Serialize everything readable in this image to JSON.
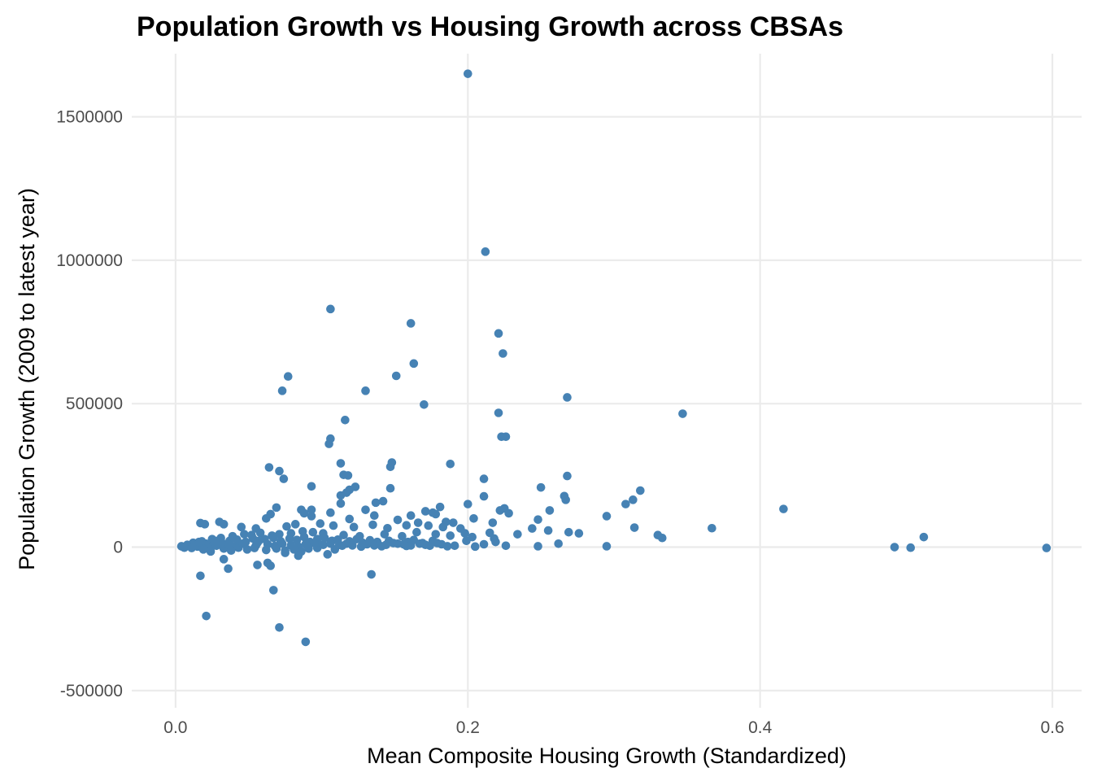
{
  "chart_data": {
    "type": "scatter",
    "title": "Population Growth vs Housing Growth across CBSAs",
    "xlabel": "Mean Composite Housing Growth (Standardized)",
    "ylabel": "Population Growth (2009 to latest year)",
    "xlim": [
      -0.03,
      0.62
    ],
    "ylim": [
      -560000,
      1720000
    ],
    "xticks": [
      0.0,
      0.2,
      0.4,
      0.6
    ],
    "xtick_labels": [
      "0.0",
      "0.2",
      "0.4",
      "0.6"
    ],
    "yticks": [
      -500000,
      0,
      500000,
      1000000,
      1500000
    ],
    "ytick_labels": [
      "-500000",
      "0",
      "500000",
      "1000000",
      "1500000"
    ],
    "grid": true,
    "legend": "none",
    "point_color": "#4682B4",
    "points": [
      [
        0.2,
        1650000
      ],
      [
        0.212,
        1030000
      ],
      [
        0.106,
        830000
      ],
      [
        0.161,
        780000
      ],
      [
        0.221,
        745000
      ],
      [
        0.224,
        675000
      ],
      [
        0.163,
        640000
      ],
      [
        0.077,
        595000
      ],
      [
        0.151,
        597000
      ],
      [
        0.073,
        545000
      ],
      [
        0.13,
        545000
      ],
      [
        0.268,
        522000
      ],
      [
        0.17,
        497000
      ],
      [
        0.347,
        465000
      ],
      [
        0.221,
        468000
      ],
      [
        0.116,
        443000
      ],
      [
        0.223,
        385000
      ],
      [
        0.226,
        385000
      ],
      [
        0.106,
        378000
      ],
      [
        0.105,
        360000
      ],
      [
        0.113,
        292000
      ],
      [
        0.148,
        295000
      ],
      [
        0.188,
        290000
      ],
      [
        0.147,
        280000
      ],
      [
        0.064,
        278000
      ],
      [
        0.071,
        265000
      ],
      [
        0.115,
        252000
      ],
      [
        0.268,
        248000
      ],
      [
        0.118,
        250000
      ],
      [
        0.074,
        238000
      ],
      [
        0.211,
        238000
      ],
      [
        0.093,
        212000
      ],
      [
        0.123,
        210000
      ],
      [
        0.25,
        208000
      ],
      [
        0.147,
        205000
      ],
      [
        0.119,
        200000
      ],
      [
        0.117,
        190000
      ],
      [
        0.318,
        197000
      ],
      [
        0.113,
        180000
      ],
      [
        0.211,
        177000
      ],
      [
        0.266,
        178000
      ],
      [
        0.313,
        165000
      ],
      [
        0.267,
        165000
      ],
      [
        0.142,
        160000
      ],
      [
        0.308,
        150000
      ],
      [
        0.137,
        155000
      ],
      [
        0.2,
        150000
      ],
      [
        0.113,
        152000
      ],
      [
        0.181,
        140000
      ],
      [
        0.093,
        130000
      ],
      [
        0.416,
        133000
      ],
      [
        0.225,
        135000
      ],
      [
        0.13,
        130000
      ],
      [
        0.069,
        138000
      ],
      [
        0.086,
        130000
      ],
      [
        0.088,
        118000
      ],
      [
        0.222,
        128000
      ],
      [
        0.106,
        120000
      ],
      [
        0.256,
        128000
      ],
      [
        0.171,
        125000
      ],
      [
        0.176,
        120000
      ],
      [
        0.065,
        115000
      ],
      [
        0.228,
        118000
      ],
      [
        0.178,
        115000
      ],
      [
        0.136,
        110000
      ],
      [
        0.093,
        108000
      ],
      [
        0.161,
        110000
      ],
      [
        0.295,
        108000
      ],
      [
        0.248,
        96000
      ],
      [
        0.217,
        85000
      ],
      [
        0.119,
        98000
      ],
      [
        0.204,
        100000
      ],
      [
        0.062,
        100000
      ],
      [
        0.152,
        95000
      ],
      [
        0.19,
        85000
      ],
      [
        0.185,
        88000
      ],
      [
        0.017,
        84000
      ],
      [
        0.02,
        80000
      ],
      [
        0.03,
        88000
      ],
      [
        0.033,
        80000
      ],
      [
        0.045,
        70000
      ],
      [
        0.055,
        65000
      ],
      [
        0.076,
        72000
      ],
      [
        0.082,
        80000
      ],
      [
        0.099,
        82000
      ],
      [
        0.108,
        75000
      ],
      [
        0.122,
        70000
      ],
      [
        0.135,
        78000
      ],
      [
        0.145,
        66000
      ],
      [
        0.158,
        76000
      ],
      [
        0.166,
        85000
      ],
      [
        0.173,
        75000
      ],
      [
        0.183,
        70000
      ],
      [
        0.195,
        65000
      ],
      [
        0.244,
        65000
      ],
      [
        0.269,
        52000
      ],
      [
        0.276,
        48000
      ],
      [
        0.314,
        68000
      ],
      [
        0.33,
        42000
      ],
      [
        0.333,
        32000
      ],
      [
        0.367,
        66000
      ],
      [
        0.255,
        58000
      ],
      [
        0.234,
        45000
      ],
      [
        0.215,
        50000
      ],
      [
        0.203,
        35000
      ],
      [
        0.218,
        30000
      ],
      [
        0.198,
        48000
      ],
      [
        0.188,
        40000
      ],
      [
        0.178,
        45000
      ],
      [
        0.165,
        52000
      ],
      [
        0.155,
        38000
      ],
      [
        0.143,
        45000
      ],
      [
        0.126,
        38000
      ],
      [
        0.115,
        42000
      ],
      [
        0.101,
        48000
      ],
      [
        0.094,
        52000
      ],
      [
        0.087,
        55000
      ],
      [
        0.079,
        48000
      ],
      [
        0.071,
        45000
      ],
      [
        0.066,
        40000
      ],
      [
        0.058,
        50000
      ],
      [
        0.052,
        42000
      ],
      [
        0.047,
        45000
      ],
      [
        0.039,
        38000
      ],
      [
        0.031,
        32000
      ],
      [
        0.025,
        28000
      ],
      [
        0.018,
        20000
      ],
      [
        0.012,
        15000
      ],
      [
        0.008,
        8000
      ],
      [
        0.004,
        3000
      ],
      [
        0.006,
        -2000
      ],
      [
        0.011,
        -3000
      ],
      [
        0.015,
        2000
      ],
      [
        0.021,
        12000
      ],
      [
        0.026,
        6000
      ],
      [
        0.032,
        14000
      ],
      [
        0.037,
        22000
      ],
      [
        0.042,
        26000
      ],
      [
        0.048,
        18000
      ],
      [
        0.053,
        30000
      ],
      [
        0.057,
        22000
      ],
      [
        0.061,
        28000
      ],
      [
        0.067,
        32000
      ],
      [
        0.072,
        20000
      ],
      [
        0.078,
        30000
      ],
      [
        0.083,
        25000
      ],
      [
        0.088,
        35000
      ],
      [
        0.092,
        18000
      ],
      [
        0.097,
        28000
      ],
      [
        0.102,
        32000
      ],
      [
        0.107,
        22000
      ],
      [
        0.111,
        26000
      ],
      [
        0.119,
        20000
      ],
      [
        0.124,
        28000
      ],
      [
        0.128,
        15000
      ],
      [
        0.133,
        24000
      ],
      [
        0.138,
        18000
      ],
      [
        0.146,
        22000
      ],
      [
        0.152,
        12000
      ],
      [
        0.159,
        18000
      ],
      [
        0.163,
        25000
      ],
      [
        0.169,
        14000
      ],
      [
        0.176,
        22000
      ],
      [
        0.182,
        10000
      ],
      [
        0.191,
        5000
      ],
      [
        0.199,
        22000
      ],
      [
        0.205,
        2000
      ],
      [
        0.211,
        10000
      ],
      [
        0.219,
        18000
      ],
      [
        0.174,
        5000
      ],
      [
        0.158,
        4000
      ],
      [
        0.141,
        3000
      ],
      [
        0.127,
        2000
      ],
      [
        0.114,
        5000
      ],
      [
        0.098,
        8000
      ],
      [
        0.084,
        2000
      ],
      [
        0.068,
        4000
      ],
      [
        0.055,
        6000
      ],
      [
        0.041,
        3000
      ],
      [
        0.028,
        5000
      ],
      [
        0.022,
        -2000
      ],
      [
        0.019,
        -8000
      ],
      [
        0.024,
        -15000
      ],
      [
        0.033,
        -5000
      ],
      [
        0.038,
        -12000
      ],
      [
        0.043,
        -2000
      ],
      [
        0.049,
        -8000
      ],
      [
        0.054,
        -3000
      ],
      [
        0.062,
        -10000
      ],
      [
        0.069,
        -5000
      ],
      [
        0.075,
        -12000
      ],
      [
        0.081,
        -8000
      ],
      [
        0.086,
        -15000
      ],
      [
        0.091,
        -5000
      ],
      [
        0.097,
        -3000
      ],
      [
        0.104,
        -25000
      ],
      [
        0.109,
        -8000
      ],
      [
        0.013,
        5000
      ],
      [
        0.005,
        1000
      ],
      [
        0.016,
        18000
      ],
      [
        0.027,
        22000
      ],
      [
        0.036,
        10000
      ],
      [
        0.046,
        12000
      ],
      [
        0.056,
        15000
      ],
      [
        0.063,
        10000
      ],
      [
        0.073,
        12000
      ],
      [
        0.079,
        6000
      ],
      [
        0.089,
        10000
      ],
      [
        0.095,
        14000
      ],
      [
        0.101,
        8000
      ],
      [
        0.106,
        12000
      ],
      [
        0.112,
        8000
      ],
      [
        0.117,
        12000
      ],
      [
        0.121,
        6000
      ],
      [
        0.131,
        10000
      ],
      [
        0.136,
        6000
      ],
      [
        0.144,
        8000
      ],
      [
        0.149,
        14000
      ],
      [
        0.156,
        10000
      ],
      [
        0.161,
        6000
      ],
      [
        0.167,
        12000
      ],
      [
        0.171,
        8000
      ],
      [
        0.179,
        14000
      ],
      [
        0.186,
        3000
      ],
      [
        0.226,
        5000
      ],
      [
        0.248,
        3000
      ],
      [
        0.262,
        12000
      ],
      [
        0.295,
        3000
      ],
      [
        0.492,
        0
      ],
      [
        0.503,
        -2000
      ],
      [
        0.512,
        35000
      ],
      [
        0.596,
        -3000
      ],
      [
        0.017,
        -100000
      ],
      [
        0.056,
        -62000
      ],
      [
        0.063,
        -55000
      ],
      [
        0.065,
        -65000
      ],
      [
        0.036,
        -75000
      ],
      [
        0.033,
        -42000
      ],
      [
        0.067,
        -150000
      ],
      [
        0.134,
        -95000
      ],
      [
        0.021,
        -240000
      ],
      [
        0.071,
        -280000
      ],
      [
        0.089,
        -330000
      ],
      [
        0.084,
        -30000
      ],
      [
        0.075,
        -20000
      ]
    ]
  }
}
